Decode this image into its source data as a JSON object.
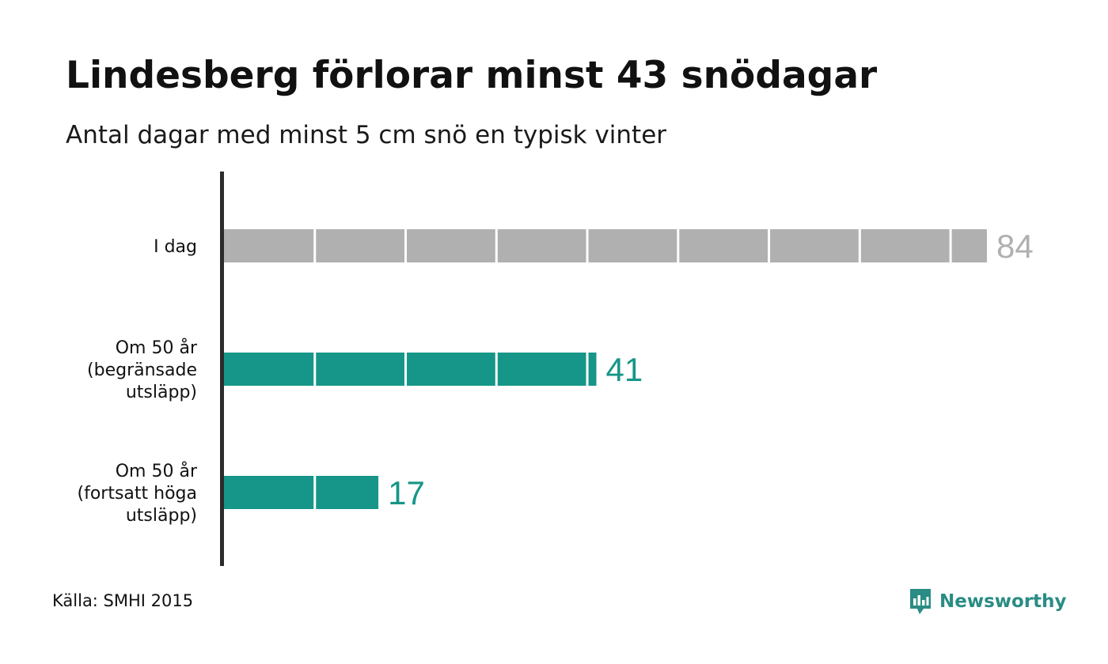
{
  "header": {
    "title": "Lindesberg förlorar minst 43 snödagar",
    "subtitle": "Antal dagar med minst 5 cm snö en typisk vinter"
  },
  "chart_data": {
    "type": "bar",
    "orientation": "horizontal",
    "title": "Lindesberg förlorar minst 43 snödagar",
    "subtitle": "Antal dagar med minst 5 cm snö en typisk vinter",
    "categories": [
      [
        "I dag"
      ],
      [
        "Om 50 år",
        "(begränsade",
        "utsläpp)"
      ],
      [
        "Om 50 år",
        "(fortsatt höga",
        "utsläpp)"
      ]
    ],
    "values": [
      84,
      41,
      17
    ],
    "bar_colors": [
      "#b0b0b0",
      "#169688",
      "#169688"
    ],
    "value_label_colors": [
      "#b0b0b0",
      "#169688",
      "#169688"
    ],
    "xlim": [
      0,
      84
    ],
    "segment_size": 10,
    "grid": false
  },
  "footer": {
    "source": "Källa: SMHI 2015",
    "brand": "Newsworthy",
    "brand_color": "#2a8c84",
    "logo_icon": "newsworthy-chart-bubble-icon"
  }
}
